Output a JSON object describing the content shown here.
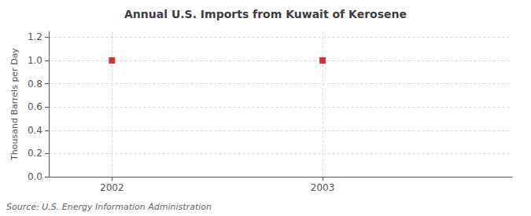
{
  "chart_data": {
    "type": "scatter",
    "title": "Annual U.S. Imports from Kuwait of Kerosene",
    "ylabel": "Thousand Barrels per Day",
    "source": "Source: U.S. Energy Information Administration",
    "x": [
      2002,
      2003
    ],
    "values": [
      1.0,
      1.0
    ],
    "color": "#cc0000",
    "marker": "square",
    "xlim": [
      2001.7,
      2003.9
    ],
    "xticks": [
      2002,
      2003
    ],
    "ylim": [
      0.0,
      1.25
    ],
    "yticks": [
      {
        "value": 0.0,
        "label": "0.0"
      },
      0.2,
      0.4,
      0.6,
      0.8,
      {
        "value": 1.0,
        "label": "1.0"
      },
      1.2
    ],
    "grid": true
  }
}
